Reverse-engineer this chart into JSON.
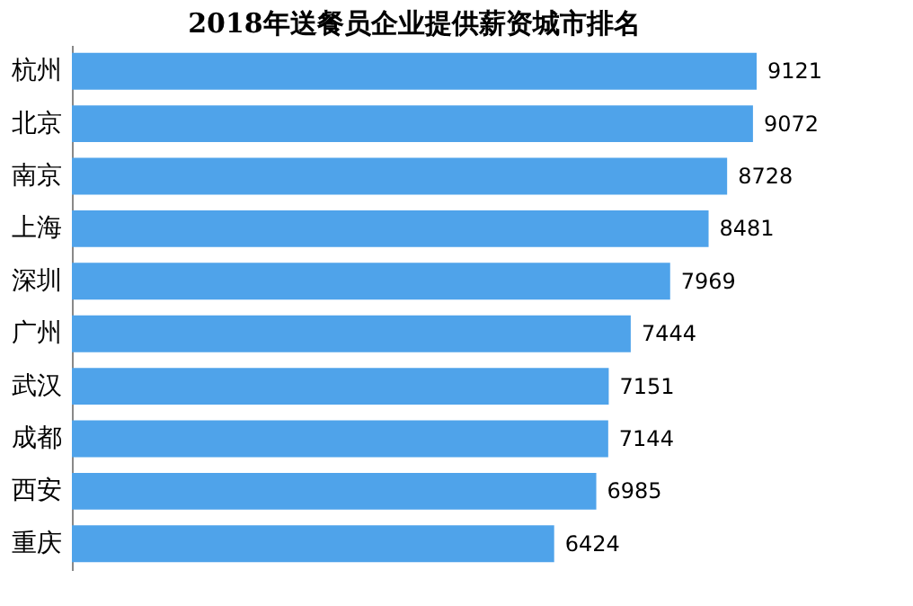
{
  "chart_data": {
    "type": "bar",
    "orientation": "horizontal",
    "title": "2018年送餐员企业提供薪资城市排名",
    "categories": [
      "杭州",
      "北京",
      "南京",
      "上海",
      "深圳",
      "广州",
      "武汉",
      "成都",
      "西安",
      "重庆"
    ],
    "values": [
      9121,
      9072,
      8728,
      8481,
      7969,
      7444,
      7151,
      7144,
      6985,
      6424
    ],
    "color": "#4fa3ea",
    "data_labels": true,
    "grid": false
  }
}
